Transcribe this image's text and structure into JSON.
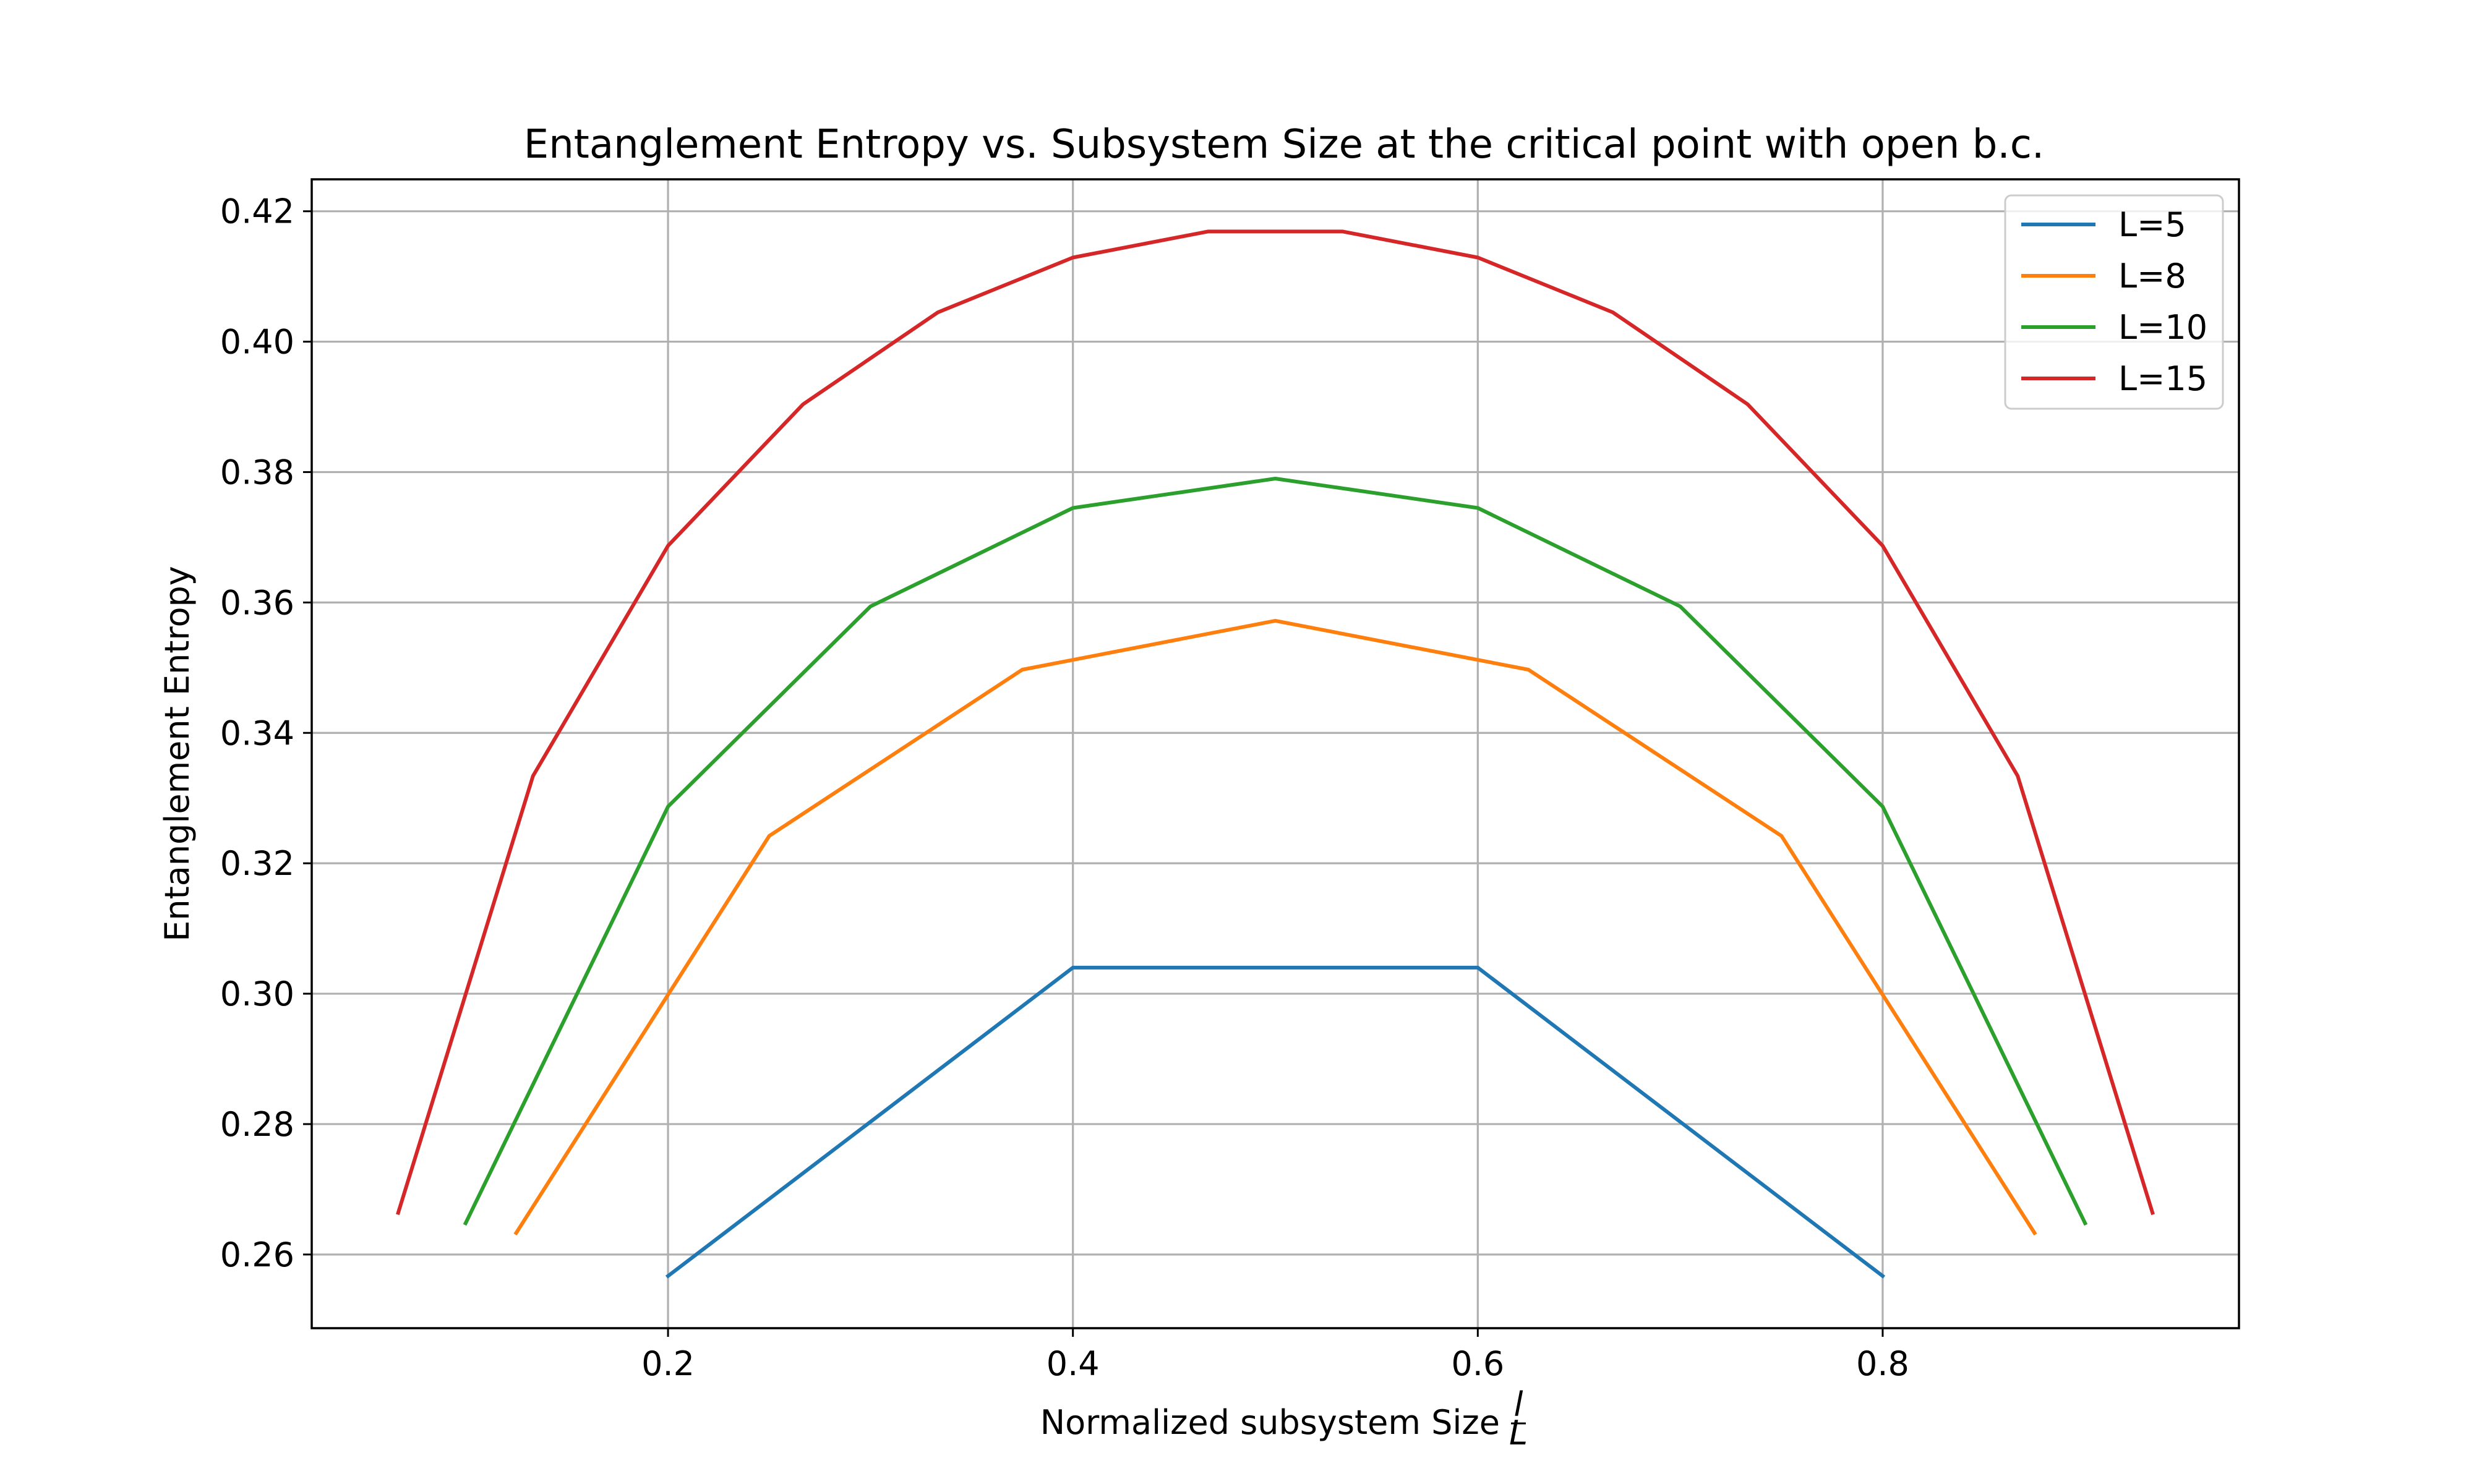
{
  "chart_data": {
    "type": "line",
    "title": "Entanglement Entropy vs. Subsystem Size at the critical point with open b.c.",
    "xlabel": "Normalized subsystem Size",
    "xlabel_fraction": {
      "numerator": "l",
      "denominator": "L"
    },
    "ylabel": "Entanglement Entropy",
    "xlim": [
      0.024,
      0.976
    ],
    "ylim": [
      0.2487,
      0.4249
    ],
    "xticks": [
      0.2,
      0.4,
      0.6,
      0.8
    ],
    "xtick_labels": [
      "0.2",
      "0.4",
      "0.6",
      "0.8"
    ],
    "yticks": [
      0.26,
      0.28,
      0.3,
      0.32,
      0.34,
      0.36,
      0.38,
      0.4,
      0.42
    ],
    "ytick_labels": [
      "0.26",
      "0.28",
      "0.30",
      "0.32",
      "0.34",
      "0.36",
      "0.38",
      "0.40",
      "0.42"
    ],
    "grid": true,
    "legend_position": "top-right",
    "series": [
      {
        "name": "L=5",
        "color": "#1f77b4",
        "x": [
          0.2,
          0.4,
          0.6,
          0.8
        ],
        "y": [
          0.2567,
          0.304,
          0.304,
          0.2567
        ]
      },
      {
        "name": "L=8",
        "color": "#ff7f0e",
        "x": [
          0.125,
          0.25,
          0.375,
          0.5,
          0.625,
          0.75,
          0.875
        ],
        "y": [
          0.2633,
          0.3242,
          0.3497,
          0.3572,
          0.3497,
          0.3242,
          0.2633
        ]
      },
      {
        "name": "L=10",
        "color": "#2ca02c",
        "x": [
          0.1,
          0.2,
          0.3,
          0.4,
          0.5,
          0.6,
          0.7,
          0.8,
          0.9
        ],
        "y": [
          0.2648,
          0.3287,
          0.3594,
          0.3745,
          0.379,
          0.3745,
          0.3594,
          0.3287,
          0.2648
        ]
      },
      {
        "name": "L=15",
        "color": "#d62728",
        "x": [
          0.0667,
          0.1333,
          0.2,
          0.2667,
          0.3333,
          0.4,
          0.4667,
          0.5333,
          0.6,
          0.6667,
          0.7333,
          0.8,
          0.8667,
          0.9333
        ],
        "y": [
          0.2664,
          0.3334,
          0.3687,
          0.3904,
          0.4045,
          0.4129,
          0.4169,
          0.4169,
          0.4129,
          0.4045,
          0.3904,
          0.3687,
          0.3334,
          0.2664
        ]
      }
    ]
  }
}
